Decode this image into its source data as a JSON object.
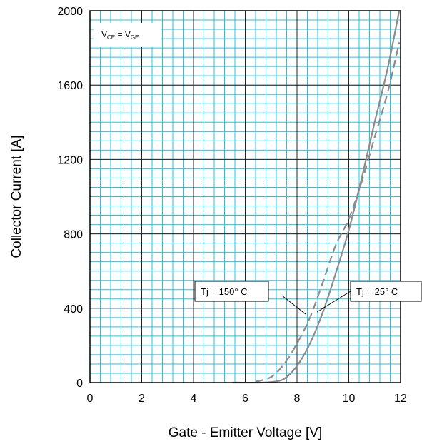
{
  "chart_data": {
    "type": "line",
    "title": "",
    "xlabel": "Gate - Emitter Voltage [V]",
    "ylabel": "Collector Current [A]",
    "xlim": [
      0,
      12
    ],
    "ylim": [
      0,
      2000
    ],
    "x_ticks": [
      "0",
      "2",
      "4",
      "6",
      "8",
      "10",
      "12"
    ],
    "y_ticks": [
      "0",
      "400",
      "800",
      "1200",
      "1600",
      "2000"
    ],
    "grid": true,
    "condition_label": {
      "main1": "V",
      "sub1": "CE",
      "eq": " = V",
      "sub2": "GE"
    },
    "annotations": [
      {
        "text": "Tj = 150°  C",
        "series": "Tj = 150°  C"
      },
      {
        "text": "Tj = 25°  C",
        "series": "Tj = 25°  C"
      }
    ],
    "series": [
      {
        "name": "Tj = 25°  C",
        "style": "solid",
        "color": "#8c8c8c",
        "points": [
          [
            5.5,
            0
          ],
          [
            6.5,
            0
          ],
          [
            7.0,
            3
          ],
          [
            7.5,
            20
          ],
          [
            8.0,
            90
          ],
          [
            8.5,
            210
          ],
          [
            9.0,
            380
          ],
          [
            9.5,
            590
          ],
          [
            10.0,
            820
          ],
          [
            10.5,
            1100
          ],
          [
            11.0,
            1400
          ],
          [
            11.5,
            1690
          ],
          [
            11.95,
            2000
          ]
        ]
      },
      {
        "name": "Tj = 150°  C",
        "style": "dashed",
        "color": "#8c8c8c",
        "points": [
          [
            6.4,
            5
          ],
          [
            7.0,
            30
          ],
          [
            7.5,
            100
          ],
          [
            8.0,
            210
          ],
          [
            8.5,
            350
          ],
          [
            9.0,
            540
          ],
          [
            9.5,
            740
          ],
          [
            10.0,
            880
          ],
          [
            10.5,
            1080
          ],
          [
            11.0,
            1320
          ],
          [
            11.5,
            1560
          ],
          [
            11.95,
            1830
          ]
        ]
      }
    ]
  },
  "colors": {
    "grid_minor": "#22c4e6",
    "grid_major": "#222222",
    "curve": "#8c8c8c",
    "frame": "#000000"
  }
}
